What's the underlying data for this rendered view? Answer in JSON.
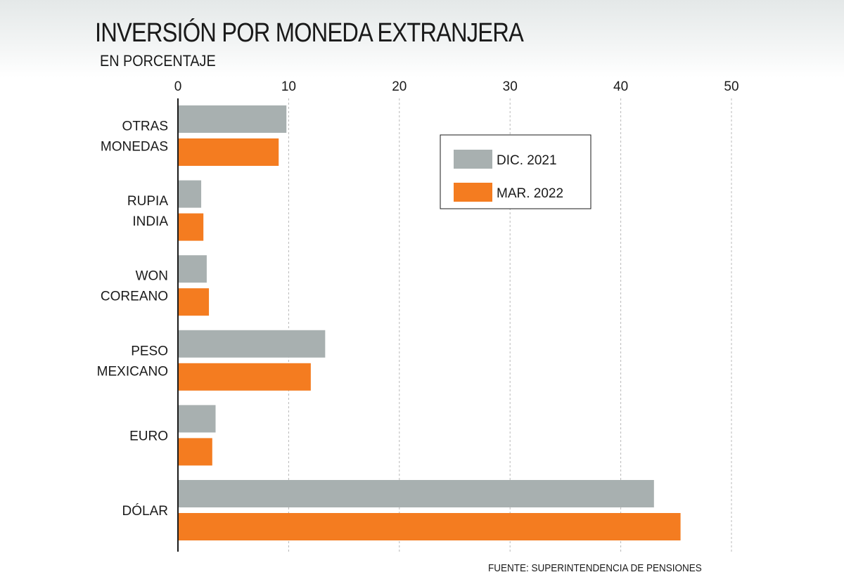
{
  "header": {
    "title": "INVERSIÓN POR MONEDA EXTRANJERA",
    "subtitle": "EN PORCENTAJE"
  },
  "footer": {
    "source": "FUENTE: SUPERINTENDENCIA DE PENSIONES"
  },
  "colors": {
    "dic_2021": "#a8b0b0",
    "mar_2022": "#f47c20",
    "gridline": "#b8b8b8",
    "axis": "#1a1a1a"
  },
  "chart_data": {
    "type": "bar",
    "orientation": "horizontal",
    "title": "INVERSIÓN POR MONEDA EXTRANJERA",
    "subtitle": "EN PORCENTAJE",
    "categories": [
      [
        "OTRAS",
        "MONEDAS"
      ],
      [
        "RUPIA",
        "INDIA"
      ],
      [
        "WON",
        "COREANO"
      ],
      [
        "PESO",
        "MEXICANO"
      ],
      [
        "EURO"
      ],
      [
        "DÓLAR"
      ]
    ],
    "series": [
      {
        "name": "DIC. 2021",
        "values": [
          9.8,
          2.1,
          2.6,
          13.3,
          3.4,
          43.0
        ]
      },
      {
        "name": "MAR. 2022",
        "values": [
          9.1,
          2.3,
          2.8,
          12.0,
          3.1,
          45.4
        ]
      }
    ],
    "xlim": [
      0,
      50
    ],
    "xticks": [
      "0",
      "10",
      "20",
      "30",
      "40",
      "50"
    ],
    "xaxis_position": "top",
    "grid": "vertical dashed",
    "legend": "upper right"
  }
}
